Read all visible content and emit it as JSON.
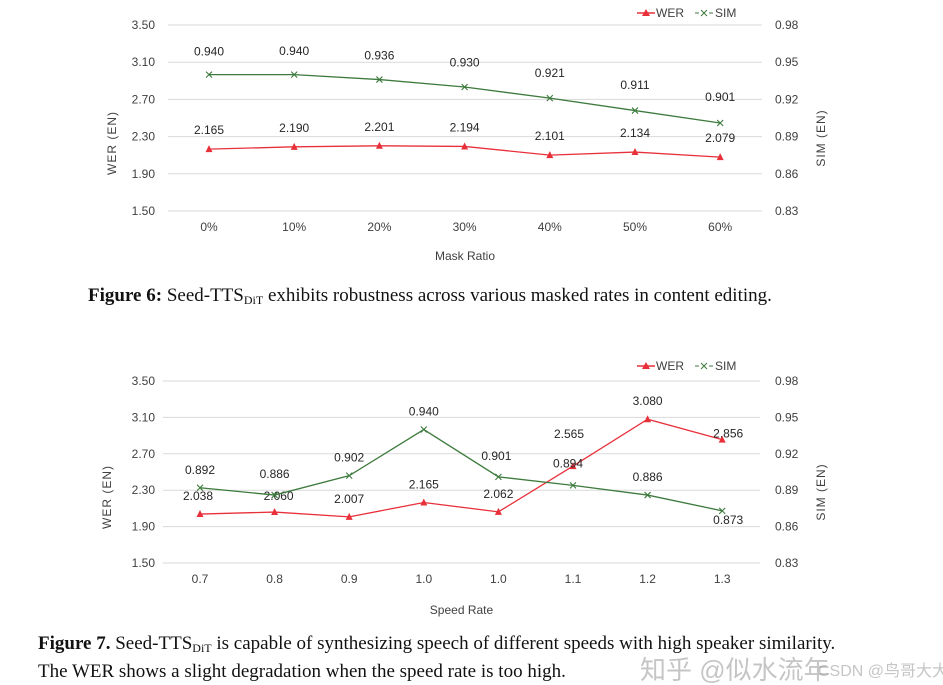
{
  "chart_data": [
    {
      "type": "line",
      "x_label": "Mask Ratio",
      "categories": [
        "0%",
        "10%",
        "20%",
        "30%",
        "40%",
        "50%",
        "60%"
      ],
      "y_left": {
        "label": "WER (EN)",
        "ticks": [
          "3.50",
          "3.10",
          "2.70",
          "2.30",
          "1.90",
          "1.50"
        ],
        "range": [
          1.5,
          3.5
        ]
      },
      "y_right": {
        "label": "SIM (EN)",
        "ticks": [
          "0.98",
          "0.95",
          "0.92",
          "0.89",
          "0.86",
          "0.83"
        ],
        "range": [
          0.83,
          0.98
        ]
      },
      "grid": true,
      "legend_position": "top-right",
      "series": [
        {
          "name": "WER",
          "axis": "left",
          "marker": "triangle",
          "color": "#e8303a",
          "values": [
            2.165,
            2.19,
            2.201,
            2.194,
            2.101,
            2.134,
            2.079
          ],
          "labels": [
            "2.165",
            "2.190",
            "2.201",
            "2.194",
            "2.101",
            "2.134",
            "2.079"
          ]
        },
        {
          "name": "SIM",
          "axis": "right",
          "marker": "x",
          "color": "#3d7a3d",
          "values": [
            0.94,
            0.94,
            0.936,
            0.93,
            0.921,
            0.911,
            0.901
          ],
          "labels": [
            "0.940",
            "0.940",
            "0.936",
            "0.930",
            "0.921",
            "0.911",
            "0.901"
          ]
        }
      ]
    },
    {
      "type": "line",
      "x_label": "Speed Rate",
      "categories": [
        "0.7",
        "0.8",
        "0.9",
        "1.0",
        "1.0",
        "1.1",
        "1.2",
        "1.3"
      ],
      "y_left": {
        "label": "WER (EN)",
        "ticks": [
          "3.50",
          "3.10",
          "2.70",
          "2.30",
          "1.90",
          "1.50"
        ],
        "range": [
          1.5,
          3.5
        ]
      },
      "y_right": {
        "label": "SIM (EN)",
        "ticks": [
          "0.98",
          "0.95",
          "0.92",
          "0.89",
          "0.86",
          "0.83"
        ],
        "range": [
          0.83,
          0.98
        ]
      },
      "grid": true,
      "legend_position": "top-right",
      "series": [
        {
          "name": "WER",
          "axis": "left",
          "marker": "triangle",
          "color": "#e8303a",
          "values": [
            2.038,
            2.06,
            2.007,
            2.165,
            2.062,
            2.565,
            3.08,
            2.856
          ],
          "labels": [
            "2.038",
            "2.060",
            "2.007",
            "2.165",
            "2.062",
            "2.565",
            "3.080",
            "2.856"
          ]
        },
        {
          "name": "SIM",
          "axis": "right",
          "marker": "x",
          "color": "#3d7a3d",
          "values": [
            0.892,
            0.886,
            0.902,
            0.94,
            0.901,
            0.894,
            0.886,
            0.873
          ],
          "labels": [
            "0.892",
            "0.886",
            "0.902",
            "0.940",
            "0.901",
            "0.894",
            "0.886",
            "0.873"
          ]
        }
      ]
    }
  ],
  "captions": {
    "fig6": {
      "label": "Figure 6:",
      "text_a": " Seed-TTS",
      "sub": "DiT",
      "text_b": " exhibits robustness across various masked rates in content editing."
    },
    "fig7": {
      "label": "Figure 7.",
      "text_a": " Seed-TTS",
      "sub": "DiT",
      "text_b": " is capable of synthesizing speech of different speeds with high speaker similarity.",
      "line2": "The WER shows a slight degradation when the speed rate is too high."
    }
  },
  "watermarks": {
    "zhihu": "知乎 @似水流年",
    "csdn": "CSDN @鸟哥大大"
  }
}
